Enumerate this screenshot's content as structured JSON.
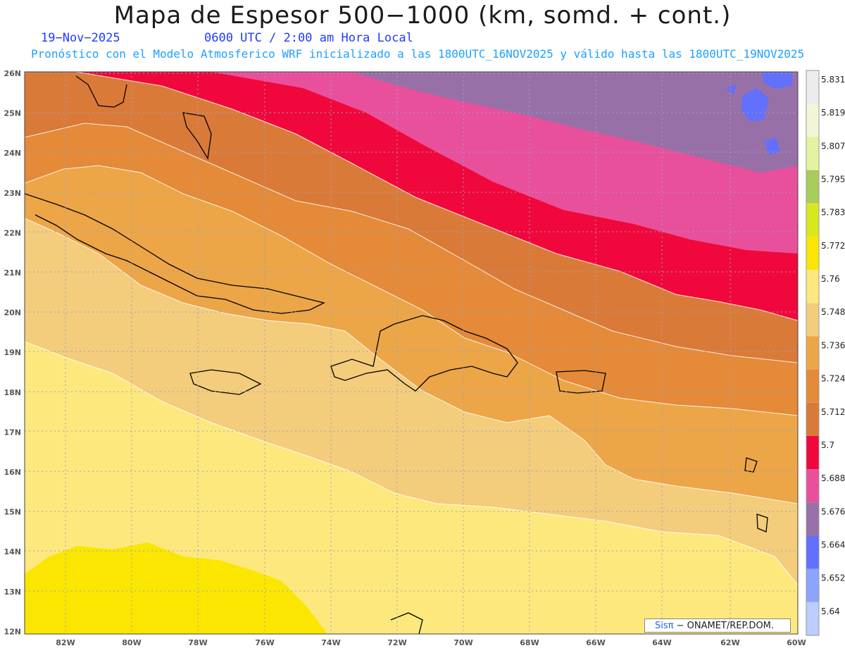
{
  "title": "Mapa de Espesor 500−1000 (km, somd. + cont.)",
  "date": "19−Nov−2025",
  "time": "0600 UTC / 2:00 am Hora Local",
  "model_info": "Pronóstico con el Modelo Atmosferico WRF inicializado a las 1800UTC_16NOV2025 y válido hasta las  1800UTC_19NOV2025",
  "credit": {
    "brand": "Sisπ",
    "org": "− ONAMET/REP.DOM."
  },
  "map_data": {
    "lon_range": [
      -83.2,
      -60
    ],
    "lat_range": [
      11.8,
      26.2
    ],
    "lon_ticks": [
      "82W",
      "80W",
      "78W",
      "76W",
      "74W",
      "72W",
      "70W",
      "68W",
      "66W",
      "64W",
      "62W",
      "60W"
    ],
    "lat_ticks": [
      "26N",
      "25N",
      "24N",
      "23N",
      "22N",
      "21N",
      "20N",
      "19N",
      "18N",
      "17N",
      "16N",
      "15N",
      "14N",
      "13N",
      "12N"
    ],
    "grid": "dotted",
    "colorbar": {
      "levels": [
        "5.831",
        "5.819",
        "5.807",
        "5.795",
        "5.783",
        "5.772",
        "5.76",
        "5.748",
        "5.736",
        "5.724",
        "5.712",
        "5.7",
        "5.688",
        "5.676",
        "5.664",
        "5.652",
        "5.64"
      ],
      "colors": [
        "#ececec",
        "#f3f5d8",
        "#e4f3a0",
        "#a8cc5c",
        "#d8e81e",
        "#fae600",
        "#fde87e",
        "#f3cc7c",
        "#eca648",
        "#e48a38",
        "#da7a38",
        "#f0083c",
        "#e8509c",
        "#9870a8",
        "#6270fc",
        "#8ca4fc",
        "#bcccfc"
      ]
    }
  }
}
